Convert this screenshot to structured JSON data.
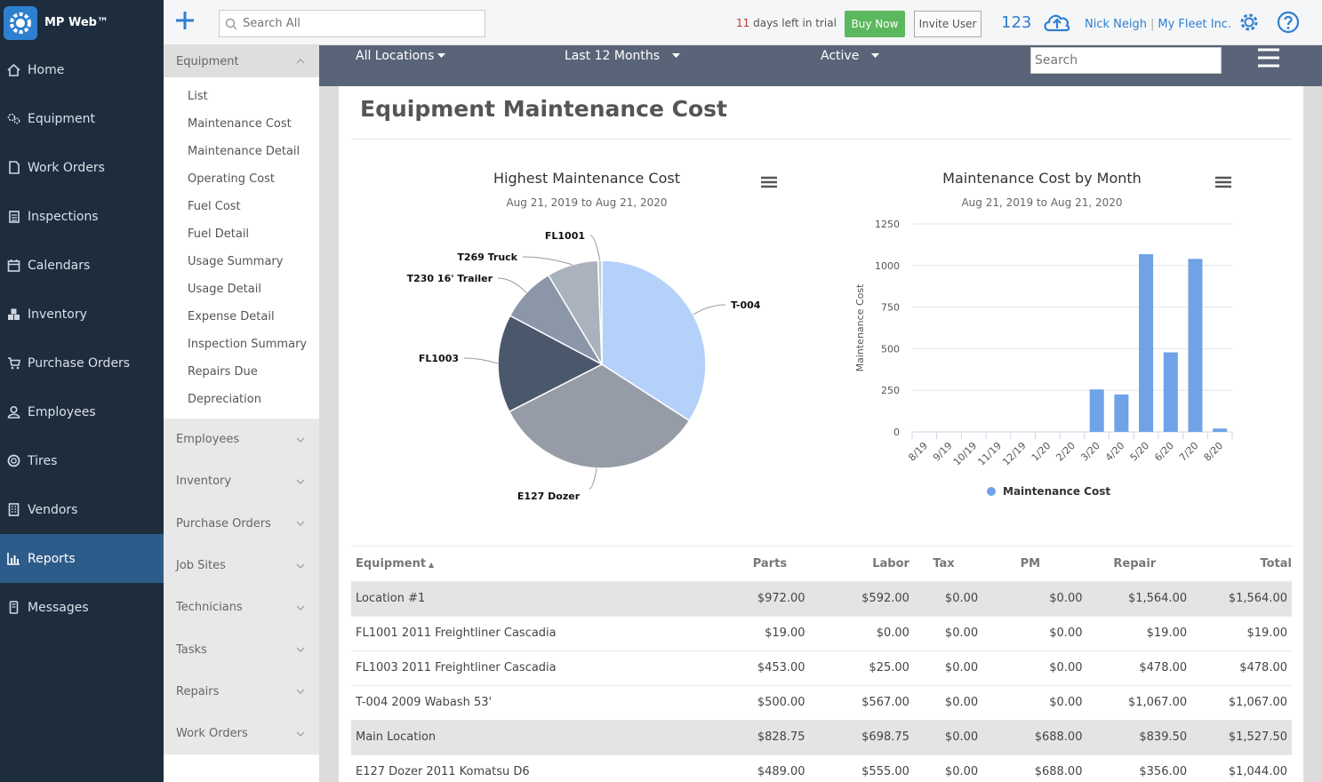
{
  "app": {
    "name": "MP Web™"
  },
  "left_nav": {
    "items": [
      {
        "label": "Home",
        "icon": "home-icon"
      },
      {
        "label": "Equipment",
        "icon": "gears-icon"
      },
      {
        "label": "Work Orders",
        "icon": "document-icon"
      },
      {
        "label": "Inspections",
        "icon": "checklist-icon"
      },
      {
        "label": "Calendars",
        "icon": "calendar-icon"
      },
      {
        "label": "Inventory",
        "icon": "boxes-icon"
      },
      {
        "label": "Purchase Orders",
        "icon": "cart-icon"
      },
      {
        "label": "Employees",
        "icon": "user-icon"
      },
      {
        "label": "Tires",
        "icon": "tire-icon"
      },
      {
        "label": "Vendors",
        "icon": "building-icon"
      },
      {
        "label": "Reports",
        "icon": "bar-chart-icon",
        "active": true
      },
      {
        "label": "Messages",
        "icon": "phone-icon"
      }
    ]
  },
  "submenu": {
    "open_section": "Equipment",
    "items": [
      "List",
      "Maintenance Cost",
      "Maintenance Detail",
      "Operating Cost",
      "Fuel Cost",
      "Fuel Detail",
      "Usage Summary",
      "Usage Detail",
      "Expense Detail",
      "Inspection Summary",
      "Repairs Due",
      "Depreciation"
    ],
    "collapsed_sections": [
      "Employees",
      "Inventory",
      "Purchase Orders",
      "Job Sites",
      "Technicians",
      "Tasks",
      "Repairs",
      "Work Orders"
    ]
  },
  "topbar": {
    "search_placeholder": "Search All",
    "trial_days": "11",
    "trial_text": "days left in trial",
    "buy_now": "Buy Now",
    "invite_user": "Invite User",
    "count": "123",
    "user_name": "Nick Neigh",
    "separator": "|",
    "company": "My Fleet Inc."
  },
  "filters": {
    "location": "All Locations",
    "period": "Last 12 Months",
    "status": "Active",
    "search_placeholder": "Search"
  },
  "page": {
    "title": "Equipment Maintenance Cost"
  },
  "colors": {
    "accent": "#2f7fd0",
    "nav_bg": "#1e2d3e",
    "nav_active": "#2d5b8a",
    "bar": "#6fa2e6",
    "buy": "#5cb85c"
  },
  "chart_data": [
    {
      "type": "pie",
      "title": "Highest Maintenance Cost",
      "subtitle": "Aug 21, 2019 to Aug 21, 2020",
      "categories": [
        "T-004",
        "E127 Dozer",
        "FL1003",
        "T230 16' Trailer",
        "T269 Truck",
        "FL1001"
      ],
      "values": [
        1067,
        1044,
        478,
        270,
        250,
        19
      ],
      "colors": [
        "#b4d1fa",
        "#969ca7",
        "#4b576b",
        "#8b97a9",
        "#aab2bd",
        "#c5ccd6"
      ]
    },
    {
      "type": "bar",
      "title": "Maintenance Cost by Month",
      "subtitle": "Aug 21, 2019 to Aug 21, 2020",
      "categories": [
        "8/19",
        "9/19",
        "10/19",
        "11/19",
        "12/19",
        "1/20",
        "2/20",
        "3/20",
        "4/20",
        "5/20",
        "6/20",
        "7/20",
        "8/20"
      ],
      "series": [
        {
          "name": "Maintenance Cost",
          "values": [
            0,
            0,
            0,
            0,
            0,
            0,
            0,
            255,
            225,
            1068,
            478,
            1040,
            20
          ]
        }
      ],
      "ylabel": "Maintenance Cost",
      "ylim": [
        0,
        1250
      ],
      "yticks": [
        "0",
        "250",
        "500",
        "750",
        "1000",
        "1250"
      ],
      "legend": "bottom-center",
      "grid": true
    }
  ],
  "table": {
    "columns": [
      "Equipment",
      "Parts",
      "Labor",
      "Tax",
      "PM",
      "Repair",
      "Total"
    ],
    "sort_indicator": "▲",
    "rows": [
      {
        "group": true,
        "cells": [
          "Location #1",
          "$972.00",
          "$592.00",
          "$0.00",
          "$0.00",
          "$1,564.00",
          "$1,564.00"
        ]
      },
      {
        "group": false,
        "cells": [
          "FL1001 2011 Freightliner Cascadia",
          "$19.00",
          "$0.00",
          "$0.00",
          "$0.00",
          "$19.00",
          "$19.00"
        ]
      },
      {
        "group": false,
        "cells": [
          "FL1003 2011 Freightliner Cascadia",
          "$453.00",
          "$25.00",
          "$0.00",
          "$0.00",
          "$478.00",
          "$478.00"
        ]
      },
      {
        "group": false,
        "cells": [
          "T-004 2009 Wabash 53'",
          "$500.00",
          "$567.00",
          "$0.00",
          "$0.00",
          "$1,067.00",
          "$1,067.00"
        ]
      },
      {
        "group": true,
        "cells": [
          "Main Location",
          "$828.75",
          "$698.75",
          "$0.00",
          "$688.00",
          "$839.50",
          "$1,527.50"
        ]
      },
      {
        "group": false,
        "cells": [
          "E127 Dozer 2011 Komatsu D6",
          "$489.00",
          "$555.00",
          "$0.00",
          "$688.00",
          "$356.00",
          "$1,044.00"
        ]
      }
    ]
  }
}
